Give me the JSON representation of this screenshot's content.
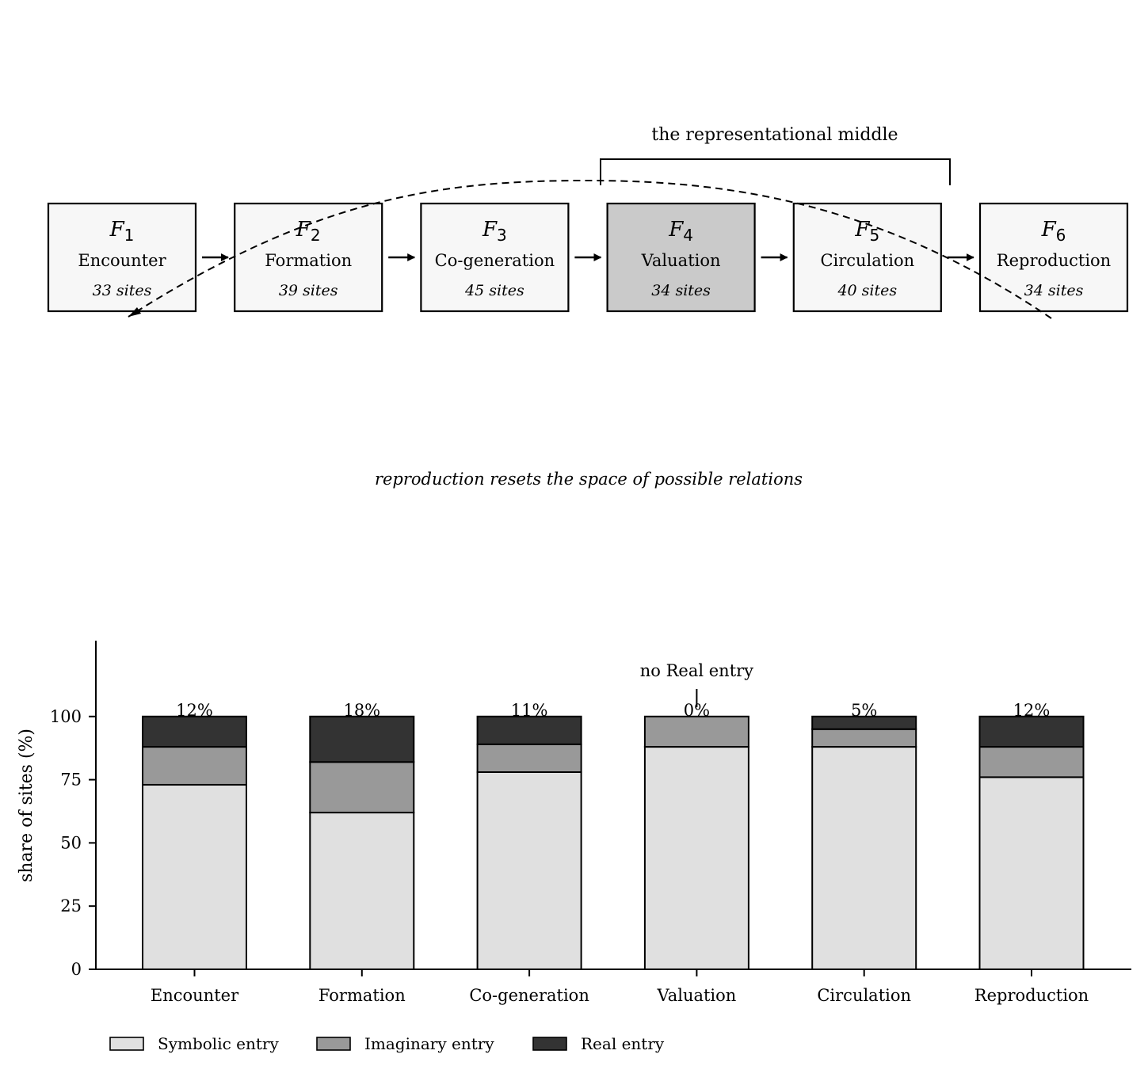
{
  "flow": {
    "bracket_label": "the representational middle",
    "cycle_label": "reproduction resets the space of possible relations",
    "stages": [
      {
        "symbol": "F",
        "index": "1",
        "name": "Encounter",
        "sites": "33 sites",
        "highlight": false
      },
      {
        "symbol": "F",
        "index": "2",
        "name": "Formation",
        "sites": "39 sites",
        "highlight": false
      },
      {
        "symbol": "F",
        "index": "3",
        "name": "Co-generation",
        "sites": "45 sites",
        "highlight": false
      },
      {
        "symbol": "F",
        "index": "4",
        "name": "Valuation",
        "sites": "34 sites",
        "highlight": true
      },
      {
        "symbol": "F",
        "index": "5",
        "name": "Circulation",
        "sites": "40 sites",
        "highlight": false
      },
      {
        "symbol": "F",
        "index": "6",
        "name": "Reproduction",
        "sites": "34 sites",
        "highlight": false
      }
    ],
    "colors": {
      "box": "#f7f7f7",
      "box_highlight": "#cacaca"
    }
  },
  "chart_data": {
    "type": "bar",
    "stacked": true,
    "categories": [
      "Encounter",
      "Formation",
      "Co-generation",
      "Valuation",
      "Circulation",
      "Reproduction"
    ],
    "series": [
      {
        "name": "Symbolic entry",
        "values": [
          73,
          62,
          78,
          88,
          88,
          76
        ],
        "color": "#e0e0e0"
      },
      {
        "name": "Imaginary entry",
        "values": [
          15,
          20,
          11,
          12,
          7,
          12
        ],
        "color": "#999999"
      },
      {
        "name": "Real entry",
        "values": [
          12,
          18,
          11,
          0,
          5,
          12
        ],
        "color": "#333333"
      }
    ],
    "top_labels": [
      "12%",
      "18%",
      "11%",
      "0%",
      "5%",
      "12%"
    ],
    "annotation": {
      "text": "no Real entry",
      "category": "Valuation"
    },
    "xlabel": "",
    "ylabel": "share of sites (%)",
    "ylim": [
      0,
      130
    ],
    "yticks": [
      0,
      25,
      50,
      75,
      100
    ],
    "grid": false,
    "legend_position": "bottom-left"
  }
}
